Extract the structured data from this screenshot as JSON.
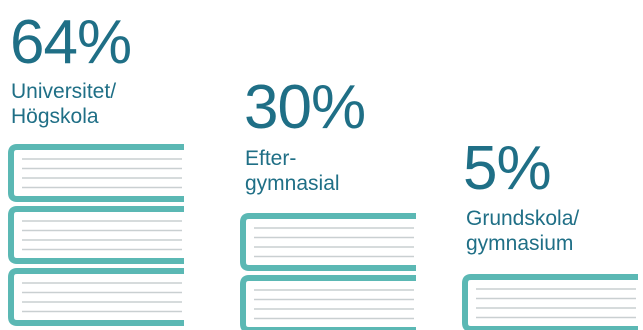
{
  "colors": {
    "text": "#1f6f86",
    "book_cover": "#5bb8b4",
    "book_page_lines": "#c9cfd1"
  },
  "chart_data": {
    "type": "bar",
    "categories": [
      "Universitet/\nHögskola",
      "Efter-\ngymnasial",
      "Grundskola/\ngymnasium"
    ],
    "values": [
      64,
      30,
      5
    ],
    "value_labels": [
      "64%",
      "30%",
      "5%"
    ],
    "unit": "%",
    "book_counts": [
      3,
      2,
      1
    ],
    "mark": "stacked-book-icons"
  }
}
